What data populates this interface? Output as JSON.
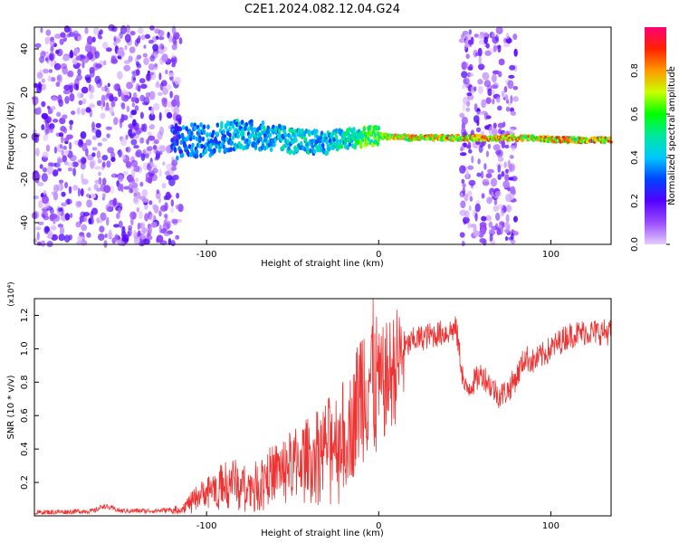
{
  "figure": {
    "title": "C2E1.2024.082.12.04.G24"
  },
  "chart_data": [
    {
      "type": "heatmap",
      "xlabel": "Height of straight line (km)",
      "ylabel": "Frequency (Hz)",
      "xlim": [
        -200,
        135
      ],
      "ylim": [
        -50,
        50
      ],
      "xticks": [
        -100,
        0,
        100
      ],
      "yticks": [
        -40,
        -20,
        0,
        20,
        40
      ],
      "colorbar": {
        "label": "Normalized spectral amplitude",
        "range": [
          0,
          1
        ],
        "ticks": [
          "0.0",
          "0.2",
          "0.4",
          "0.6",
          "0.8"
        ],
        "colors": [
          "#e6ccff",
          "#9a4dff",
          "#5500ff",
          "#0044ff",
          "#00c8ff",
          "#00e8a0",
          "#00ff00",
          "#c8ff00",
          "#ff9900",
          "#ff2200",
          "#ff0077"
        ]
      },
      "signal_track": [
        {
          "x": -120,
          "y": -3,
          "amp": 0.35
        },
        {
          "x": -100,
          "y": -2,
          "amp": 0.45
        },
        {
          "x": -80,
          "y": 1,
          "amp": 0.5
        },
        {
          "x": -60,
          "y": -1,
          "amp": 0.5
        },
        {
          "x": -45,
          "y": -3,
          "amp": 0.55
        },
        {
          "x": -30,
          "y": -3,
          "amp": 0.5
        },
        {
          "x": -15,
          "y": -1,
          "amp": 0.6
        },
        {
          "x": 0,
          "y": 0,
          "amp": 0.75
        },
        {
          "x": 20,
          "y": -1,
          "amp": 0.85
        },
        {
          "x": 45,
          "y": -1,
          "amp": 0.9
        },
        {
          "x": 85,
          "y": -1,
          "amp": 0.85
        },
        {
          "x": 110,
          "y": -2,
          "amp": 0.95
        },
        {
          "x": 135,
          "y": -2,
          "amp": 0.95
        }
      ],
      "noise_regions": [
        [
          -200,
          -115
        ],
        [
          48,
          80
        ]
      ]
    },
    {
      "type": "line",
      "xlabel": "Height of straight line (km)",
      "ylabel": "SNR (10 * v/v)",
      "y_multiplier": "(x10⁴)",
      "xlim": [
        -200,
        135
      ],
      "ylim": [
        0,
        1.3
      ],
      "xticks": [
        -100,
        0,
        100
      ],
      "yticks": [
        "0.2",
        "0.4",
        "0.6",
        "0.8",
        "1.0",
        "1.2"
      ],
      "color": "#ee3333",
      "series": [
        {
          "x": [
            -200,
            -180,
            -165,
            -160,
            -150,
            -130,
            -115,
            -105,
            -95,
            -85,
            -75,
            -65,
            -55,
            -45,
            -35,
            -25,
            -15,
            -10,
            -5,
            0,
            5,
            10,
            13,
            15,
            20,
            30,
            40,
            45,
            50,
            55,
            60,
            65,
            70,
            75,
            80,
            85,
            90,
            100,
            110,
            120,
            135
          ],
          "y": [
            0.02,
            0.025,
            0.03,
            0.06,
            0.03,
            0.03,
            0.04,
            0.12,
            0.18,
            0.22,
            0.18,
            0.25,
            0.3,
            0.35,
            0.4,
            0.48,
            0.55,
            0.78,
            0.85,
            0.75,
            0.82,
            0.9,
            0.95,
            1.0,
            1.05,
            1.08,
            1.1,
            1.12,
            0.75,
            0.8,
            0.85,
            0.78,
            0.72,
            0.75,
            0.83,
            0.95,
            0.92,
            1.0,
            1.08,
            1.1,
            1.1
          ]
        }
      ]
    }
  ]
}
